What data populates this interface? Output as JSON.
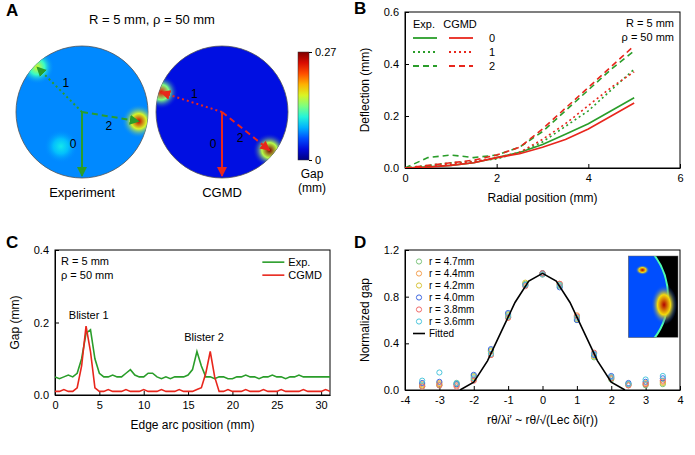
{
  "chart_data": [
    {
      "type": "image",
      "panel_label": "A",
      "title": "R = 5 mm, ρ = 50 mm",
      "xlim": [
        -5,
        5
      ],
      "ylim": [
        -5,
        5
      ],
      "tick_labels": false,
      "line_labels": [
        "0",
        "1",
        "2"
      ],
      "maps": [
        {
          "name": "Experiment",
          "color": "#2a9d2a",
          "baseline": 0.07,
          "hotspots": [
            {
              "x": -3.4,
              "y": 3.4,
              "gap": 0.16
            },
            {
              "x": 4.3,
              "y": -0.7,
              "gap": 0.25
            },
            {
              "x": -1.6,
              "y": -2.6,
              "gap": 0.1
            }
          ]
        },
        {
          "name": "CGMD",
          "color": "#e8261c",
          "baseline": 0.03,
          "hotspots": [
            {
              "x": -4.6,
              "y": 1.5,
              "gap": 0.24
            },
            {
              "x": 3.6,
              "y": -2.9,
              "gap": 0.27
            }
          ]
        }
      ],
      "colorbar": {
        "label": "Gap (mm)",
        "range": [
          0,
          0.27
        ],
        "ticks": [
          0,
          0.27
        ]
      }
    },
    {
      "type": "line",
      "panel_label": "B",
      "xlabel": "Radial position (mm)",
      "ylabel": "Deflection (mm)",
      "xlim": [
        0,
        6
      ],
      "xticks": [
        0,
        2,
        4,
        6
      ],
      "ylim": [
        0,
        0.6
      ],
      "yticks": [
        {
          "value": 0,
          "label": "0.0"
        },
        {
          "value": 0.2,
          "label": "0.2"
        },
        {
          "value": 0.4,
          "label": "0.4"
        },
        {
          "value": 0.6,
          "label": "0.6"
        }
      ],
      "legend": "top-left",
      "annotations": [
        {
          "text": "R = 5 mm"
        },
        {
          "text": "ρ = 50 mm"
        }
      ],
      "x": [
        0,
        0.5,
        1,
        1.5,
        2,
        2.5,
        3,
        3.5,
        4,
        4.5,
        5
      ],
      "series": [
        {
          "name": "0",
          "group": "Exp.",
          "color": "#2a9d2a",
          "line_style": "solid",
          "values": [
            0,
            0.005,
            0.01,
            0.02,
            0.04,
            0.06,
            0.09,
            0.13,
            0.17,
            0.22,
            0.27
          ]
        },
        {
          "name": "1",
          "group": "Exp.",
          "color": "#2a9d2a",
          "line_style": "dotted",
          "values": [
            0,
            0.01,
            0.02,
            0.025,
            0.035,
            0.06,
            0.1,
            0.16,
            0.22,
            0.3,
            0.38
          ]
        },
        {
          "name": "2",
          "group": "Exp.",
          "color": "#2a9d2a",
          "line_style": "dashed",
          "values": [
            0,
            0.04,
            0.05,
            0.04,
            0.05,
            0.08,
            0.14,
            0.22,
            0.3,
            0.38,
            0.45
          ]
        },
        {
          "name": "0",
          "group": "CGMD",
          "color": "#e8261c",
          "line_style": "solid",
          "values": [
            0,
            0.003,
            0.01,
            0.02,
            0.04,
            0.055,
            0.08,
            0.11,
            0.15,
            0.2,
            0.25
          ]
        },
        {
          "name": "1",
          "group": "CGMD",
          "color": "#e8261c",
          "line_style": "dotted",
          "values": [
            0,
            0.005,
            0.015,
            0.025,
            0.04,
            0.06,
            0.11,
            0.17,
            0.24,
            0.31,
            0.37
          ]
        },
        {
          "name": "2",
          "group": "CGMD",
          "color": "#e8261c",
          "line_style": "dashed",
          "values": [
            0,
            0.01,
            0.02,
            0.03,
            0.05,
            0.08,
            0.15,
            0.23,
            0.31,
            0.39,
            0.47
          ]
        }
      ]
    },
    {
      "type": "line",
      "panel_label": "C",
      "xlabel": "Edge arc position (mm)",
      "ylabel": "Gap (mm)",
      "xlim": [
        0,
        31
      ],
      "xticks": [
        0,
        5,
        10,
        15,
        20,
        25,
        30
      ],
      "ylim": [
        0,
        0.4
      ],
      "yticks": [
        {
          "value": 0,
          "label": "0.0"
        },
        {
          "value": 0.2,
          "label": "0.2"
        },
        {
          "value": 0.4,
          "label": "0.4"
        }
      ],
      "legend": "top-right",
      "annotations": [
        {
          "text": "R = 5 mm"
        },
        {
          "text": "ρ = 50 mm"
        },
        {
          "text": "Blister 1",
          "x": 3.8,
          "y": 0.21
        },
        {
          "text": "Blister 2",
          "x": 16.8,
          "y": 0.15
        }
      ],
      "x": [
        0,
        0.5,
        1,
        1.5,
        2,
        2.5,
        3,
        3.5,
        4,
        4.5,
        5,
        5.5,
        6,
        6.5,
        7,
        7.5,
        8,
        8.5,
        9,
        9.5,
        10,
        10.5,
        11,
        11.5,
        12,
        12.5,
        13,
        13.5,
        14,
        14.5,
        15,
        15.5,
        16,
        16.5,
        17,
        17.5,
        18,
        18.5,
        19,
        19.5,
        20,
        20.5,
        21,
        21.5,
        22,
        22.5,
        23,
        23.5,
        24,
        24.5,
        25,
        25.5,
        26,
        26.5,
        27,
        27.5,
        28,
        28.5,
        29,
        29.5,
        30,
        30.5,
        31
      ],
      "series": [
        {
          "name": "Exp.",
          "color": "#2a9d2a",
          "line_style": "solid",
          "values": [
            0.05,
            0.045,
            0.05,
            0.055,
            0.05,
            0.06,
            0.1,
            0.17,
            0.18,
            0.1,
            0.06,
            0.05,
            0.05,
            0.055,
            0.05,
            0.05,
            0.06,
            0.07,
            0.055,
            0.05,
            0.05,
            0.06,
            0.06,
            0.05,
            0.045,
            0.05,
            0.045,
            0.05,
            0.05,
            0.05,
            0.055,
            0.07,
            0.12,
            0.08,
            0.05,
            0.05,
            0.045,
            0.05,
            0.05,
            0.045,
            0.045,
            0.05,
            0.05,
            0.055,
            0.05,
            0.05,
            0.045,
            0.05,
            0.05,
            0.055,
            0.05,
            0.05,
            0.045,
            0.05,
            0.05,
            0.055,
            0.05,
            0.05,
            0.05,
            0.05,
            0.05,
            0.05,
            0.05
          ]
        },
        {
          "name": "CGMD",
          "color": "#e8261c",
          "line_style": "solid",
          "values": [
            0.01,
            0.01,
            0.015,
            0.01,
            0.01,
            0.02,
            0.08,
            0.19,
            0.12,
            0.02,
            0.01,
            0.01,
            0.015,
            0.01,
            0.01,
            0.01,
            0.015,
            0.01,
            0.01,
            0.01,
            0.015,
            0.01,
            0.01,
            0.01,
            0.015,
            0.01,
            0.01,
            0.01,
            0.015,
            0.01,
            0.01,
            0.01,
            0.015,
            0.02,
            0.06,
            0.12,
            0.05,
            0.01,
            0.01,
            0.015,
            0.01,
            0.01,
            0.01,
            0.015,
            0.01,
            0.01,
            0.01,
            0.015,
            0.01,
            0.01,
            0.01,
            0.015,
            0.01,
            0.01,
            0.01,
            0.01,
            0.015,
            0.01,
            0.01,
            0.01,
            0.01,
            0.015,
            0.01
          ]
        }
      ]
    },
    {
      "type": "scatter",
      "panel_label": "D",
      "xlabel": "rθ/λi′ ~ rθ/√(Lec δi(r))",
      "ylabel": "Normalized gap",
      "xlim": [
        -4,
        4
      ],
      "xticks": [
        -4,
        -3,
        -2,
        -1,
        0,
        1,
        2,
        3,
        4
      ],
      "ylim": [
        0,
        1.2
      ],
      "yticks": [
        {
          "value": 0,
          "label": "0.0"
        },
        {
          "value": 0.4,
          "label": "0.4"
        },
        {
          "value": 0.8,
          "label": "0.8"
        },
        {
          "value": 1.2,
          "label": "1.2"
        }
      ],
      "legend": "top-left",
      "series": [
        {
          "name": "r = 4.7mm",
          "color": "#7cc47c",
          "marker": "circle",
          "x": [
            -3.5,
            -3,
            -2.5,
            -2,
            -1.5,
            -1,
            -0.5,
            0,
            0.5,
            1,
            1.5,
            2,
            2.5,
            3,
            3.5
          ],
          "values": [
            0.03,
            0.04,
            0.05,
            0.12,
            0.34,
            0.65,
            0.91,
            1.0,
            0.89,
            0.6,
            0.28,
            0.09,
            0.05,
            0.04,
            0.05
          ]
        },
        {
          "name": "r = 4.4mm",
          "color": "#f4a050",
          "marker": "circle",
          "x": [
            -3.5,
            -3,
            -2.5,
            -2,
            -1.5,
            -1,
            -0.5,
            0,
            0.5,
            1,
            1.5,
            2,
            2.5,
            3,
            3.5
          ],
          "values": [
            0.05,
            0.06,
            0.04,
            0.09,
            0.3,
            0.62,
            0.9,
            0.99,
            0.91,
            0.64,
            0.31,
            0.11,
            0.04,
            0.06,
            0.07
          ]
        },
        {
          "name": "r = 4.2mm",
          "color": "#d8c43a",
          "marker": "circle",
          "x": [
            -3.5,
            -3,
            -2.5,
            -2,
            -1.5,
            -1,
            -0.5,
            0,
            0.5,
            1,
            1.5,
            2,
            2.5,
            3,
            3.5
          ],
          "values": [
            0.04,
            0.05,
            0.06,
            0.11,
            0.33,
            0.64,
            0.92,
            1.0,
            0.9,
            0.61,
            0.29,
            0.1,
            0.05,
            0.05,
            0.06
          ]
        },
        {
          "name": "r = 4.0mm",
          "color": "#4169e1",
          "marker": "circle",
          "x": [
            -3.5,
            -3,
            -2.5,
            -2,
            -1.5,
            -1,
            -0.5,
            0,
            0.5,
            1,
            1.5,
            2,
            2.5,
            3,
            3.5
          ],
          "values": [
            0.06,
            0.07,
            0.05,
            0.13,
            0.35,
            0.66,
            0.9,
            1.0,
            0.88,
            0.6,
            0.3,
            0.12,
            0.06,
            0.07,
            0.1
          ]
        },
        {
          "name": "r = 3.8mm",
          "color": "#f06a6a",
          "marker": "circle",
          "x": [
            -3.5,
            -3,
            -2.5,
            -2,
            -1.5,
            -1,
            -0.5,
            0,
            0.5,
            1,
            1.5,
            2,
            2.5,
            3,
            3.5
          ],
          "values": [
            0.03,
            0.04,
            0.03,
            0.08,
            0.3,
            0.62,
            0.89,
            1.0,
            0.91,
            0.63,
            0.32,
            0.1,
            0.04,
            0.05,
            0.08
          ]
        },
        {
          "name": "r = 3.6mm",
          "color": "#4cc6dc",
          "marker": "circle",
          "x": [
            -3.5,
            -3,
            -2.5,
            -2,
            -1.5,
            -1,
            -0.5,
            0,
            0.5,
            1,
            1.5,
            2,
            2.5,
            3,
            3.5
          ],
          "values": [
            0.08,
            0.15,
            0.06,
            0.1,
            0.31,
            0.63,
            0.9,
            0.99,
            0.9,
            0.62,
            0.31,
            0.11,
            0.05,
            0.09,
            0.12
          ]
        },
        {
          "name": "Fitted",
          "type": "line",
          "color": "#000000",
          "line_style": "solid",
          "x": [
            -2.4,
            -2,
            -1.6,
            -1.2,
            -0.8,
            -0.4,
            0,
            0.4,
            0.8,
            1.2,
            1.6,
            2,
            2.4
          ],
          "values": [
            0,
            0.067,
            0.25,
            0.5,
            0.75,
            0.933,
            1,
            0.933,
            0.75,
            0.5,
            0.25,
            0.067,
            0
          ]
        }
      ]
    }
  ]
}
